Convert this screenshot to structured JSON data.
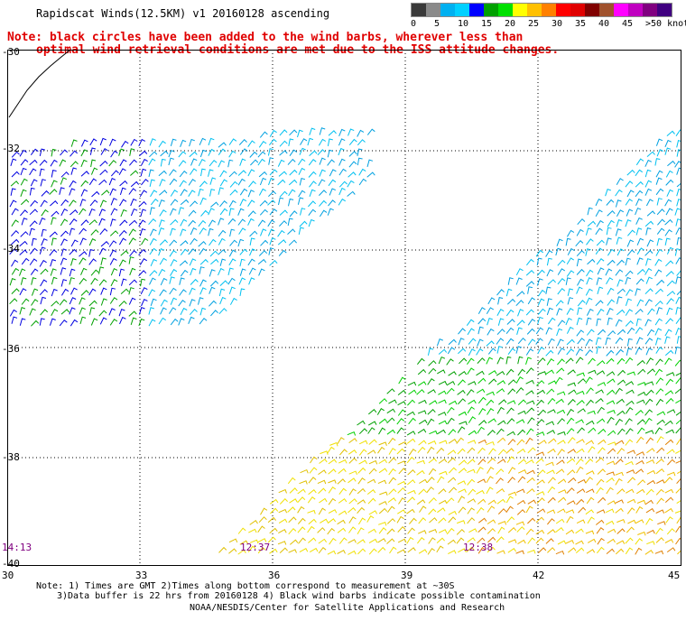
{
  "title": "Rapidscat Winds(12.5KM) v1 20160128 ascending",
  "note": {
    "line1": "Note: black circles have been added to the wind barbs, wherever less than",
    "line2": "optimal wind retrieval conditions are met due to the ISS attitude changes."
  },
  "legend": {
    "labels": [
      "0",
      "5",
      "10",
      "15",
      "20",
      "25",
      "30",
      "35",
      "40",
      "45",
      ">50 knots"
    ],
    "colors": [
      "#3a3a3a",
      "#8a8a8a",
      "#00b0f0",
      "#00d0ff",
      "#0000ff",
      "#00a000",
      "#00e000",
      "#ffff00",
      "#ffc000",
      "#ff8000",
      "#ff0000",
      "#e00000",
      "#800000",
      "#a0522d",
      "#ff00ff",
      "#c000c0",
      "#800080",
      "#400080"
    ]
  },
  "axes": {
    "x_ticks": [
      "30",
      "33",
      "36",
      "39",
      "42",
      "45"
    ],
    "y_ticks": [
      "-30",
      "-32",
      "-34",
      "-36",
      "-38",
      "-40"
    ]
  },
  "times": [
    "14:13",
    "12:37",
    "12:38"
  ],
  "footer": {
    "line1": "Note: 1) Times are GMT 2)Times along bottom correspond to measurement at ~30S",
    "line2": "3)Data buffer is 22 hrs from 20160128 4) Black wind barbs indicate possible contamination",
    "credit": "NOAA/NESDIS/Center for Satellite Applications and Research"
  }
}
